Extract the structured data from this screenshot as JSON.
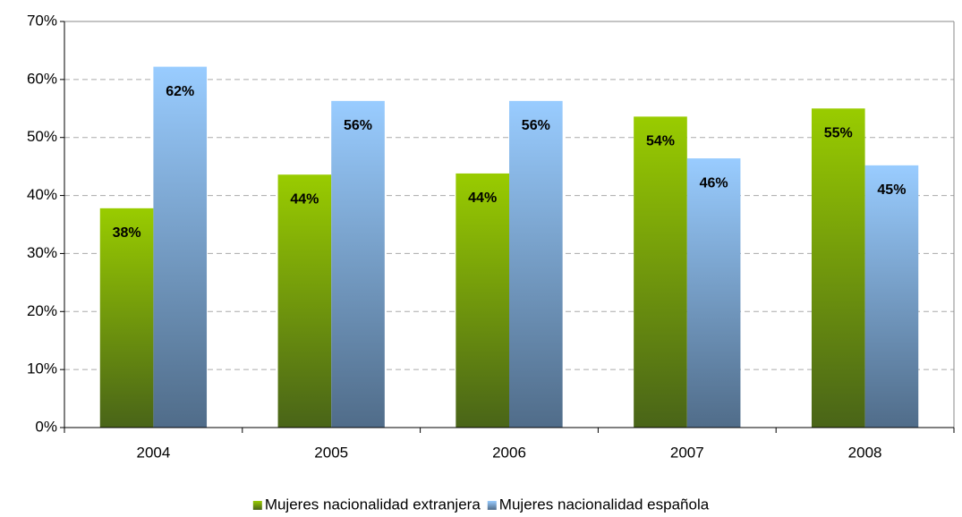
{
  "chart_data": {
    "type": "bar",
    "categories": [
      "2004",
      "2005",
      "2006",
      "2007",
      "2008"
    ],
    "series": [
      {
        "name": "Mujeres nacionalidad extranjera",
        "color": "#99cc00",
        "values": [
          37.8,
          43.6,
          43.8,
          53.6,
          55.0
        ],
        "value_labels": [
          "38%",
          "44%",
          "44%",
          "54%",
          "55%"
        ]
      },
      {
        "name": "Mujeres nacionalidad española",
        "color": "#99ccff",
        "values": [
          62.2,
          56.3,
          56.3,
          46.4,
          45.2
        ],
        "value_labels": [
          "62%",
          "56%",
          "56%",
          "46%",
          "45%"
        ]
      }
    ],
    "ylim": [
      0,
      70
    ],
    "yticks": [
      {
        "value": 0,
        "label": "0%"
      },
      {
        "value": 10,
        "label": "10%"
      },
      {
        "value": 20,
        "label": "20%"
      },
      {
        "value": 30,
        "label": "30%"
      },
      {
        "value": 40,
        "label": "40%"
      },
      {
        "value": 50,
        "label": "50%"
      },
      {
        "value": 60,
        "label": "60%"
      },
      {
        "value": 70,
        "label": "70%"
      }
    ],
    "grid": true,
    "legend": "bottom"
  }
}
